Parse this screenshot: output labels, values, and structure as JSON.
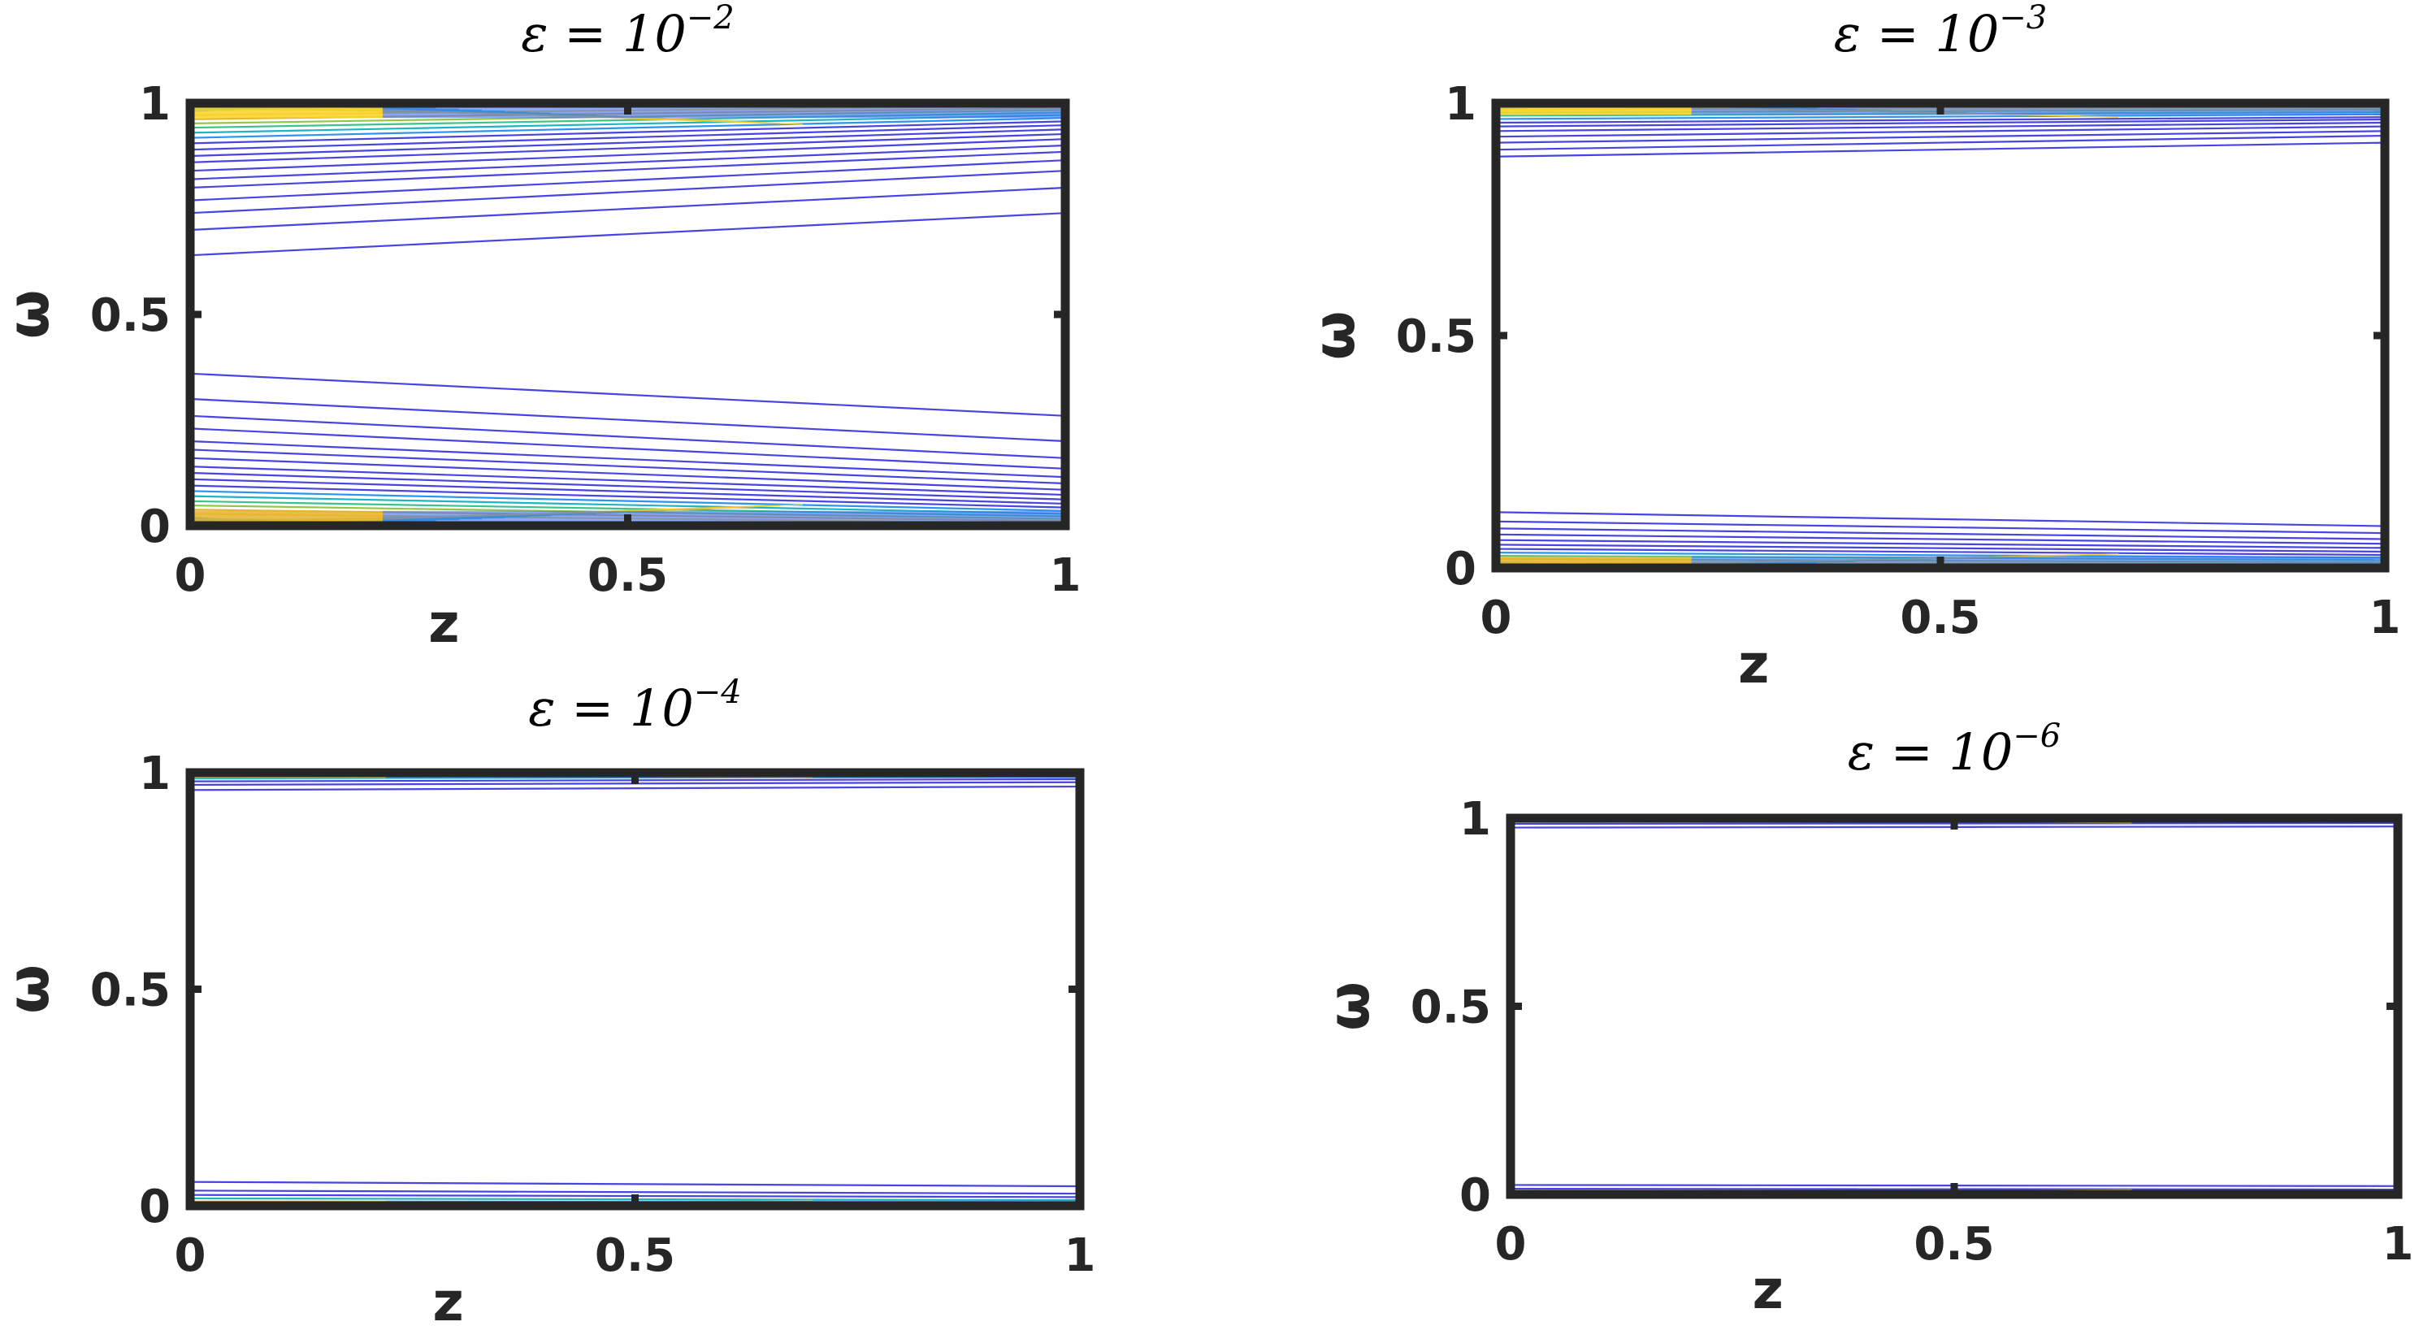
{
  "figure": {
    "panel_count": 4,
    "colormap": [
      "#3e26a8",
      "#4744e1",
      "#3b6dfb",
      "#2b93f0",
      "#1db4c4",
      "#3bc38b",
      "#93c644",
      "#e6b32f",
      "#f9d229"
    ]
  },
  "chart_data": [
    {
      "type": "contour",
      "title_eps": "ε = 10",
      "title_exp": "−2",
      "xlabel": "z",
      "ylabel": "ω",
      "xlim": [
        0,
        1
      ],
      "ylim": [
        0,
        1
      ],
      "xticks": [
        0,
        0.5,
        1
      ],
      "yticks": [
        0,
        0.5,
        1
      ],
      "xtick_labels": [
        "0",
        "0.5",
        "1"
      ],
      "ytick_labels": [
        "0",
        "0.5",
        "1"
      ],
      "top_contours": [
        {
          "w0": 0.64,
          "w1": 0.74
        },
        {
          "w0": 0.7,
          "w1": 0.8
        },
        {
          "w0": 0.74,
          "w1": 0.84
        },
        {
          "w0": 0.77,
          "w1": 0.865
        },
        {
          "w0": 0.8,
          "w1": 0.885
        },
        {
          "w0": 0.82,
          "w1": 0.9
        },
        {
          "w0": 0.84,
          "w1": 0.915
        },
        {
          "w0": 0.86,
          "w1": 0.927
        },
        {
          "w0": 0.875,
          "w1": 0.938
        },
        {
          "w0": 0.89,
          "w1": 0.948
        },
        {
          "w0": 0.905,
          "w1": 0.957
        },
        {
          "w0": 0.918,
          "w1": 0.965
        },
        {
          "w0": 0.93,
          "w1": 0.972
        },
        {
          "w0": 0.942,
          "w1": 0.978
        },
        {
          "w0": 0.952,
          "w1": 0.984
        },
        {
          "w0": 0.962,
          "w1": 0.989
        },
        {
          "w0": 0.972,
          "w1": 0.994
        }
      ],
      "bottom_contours": [
        {
          "w0": 0.36,
          "w1": 0.26
        },
        {
          "w0": 0.3,
          "w1": 0.2
        },
        {
          "w0": 0.26,
          "w1": 0.16
        },
        {
          "w0": 0.23,
          "w1": 0.135
        },
        {
          "w0": 0.2,
          "w1": 0.115
        },
        {
          "w0": 0.18,
          "w1": 0.1
        },
        {
          "w0": 0.16,
          "w1": 0.085
        },
        {
          "w0": 0.14,
          "w1": 0.073
        },
        {
          "w0": 0.125,
          "w1": 0.062
        },
        {
          "w0": 0.11,
          "w1": 0.052
        },
        {
          "w0": 0.095,
          "w1": 0.043
        },
        {
          "w0": 0.082,
          "w1": 0.035
        },
        {
          "w0": 0.07,
          "w1": 0.028
        },
        {
          "w0": 0.058,
          "w1": 0.022
        },
        {
          "w0": 0.048,
          "w1": 0.016
        },
        {
          "w0": 0.038,
          "w1": 0.011
        },
        {
          "w0": 0.028,
          "w1": 0.006
        }
      ]
    },
    {
      "type": "contour",
      "title_eps": "ε = 10",
      "title_exp": "−3",
      "xlabel": "z",
      "ylabel": "ω",
      "xlim": [
        0,
        1
      ],
      "ylim": [
        0,
        1
      ],
      "xticks": [
        0,
        0.5,
        1
      ],
      "yticks": [
        0,
        0.5,
        1
      ],
      "xtick_labels": [
        "0",
        "0.5",
        "1"
      ],
      "ytick_labels": [
        "0",
        "0.5",
        "1"
      ],
      "top_contours": [
        {
          "w0": 0.885,
          "w1": 0.915
        },
        {
          "w0": 0.9,
          "w1": 0.93
        },
        {
          "w0": 0.915,
          "w1": 0.94
        },
        {
          "w0": 0.928,
          "w1": 0.95
        },
        {
          "w0": 0.94,
          "w1": 0.958
        },
        {
          "w0": 0.95,
          "w1": 0.965
        },
        {
          "w0": 0.958,
          "w1": 0.97
        },
        {
          "w0": 0.966,
          "w1": 0.976
        },
        {
          "w0": 0.973,
          "w1": 0.981
        },
        {
          "w0": 0.98,
          "w1": 0.986
        },
        {
          "w0": 0.986,
          "w1": 0.99
        }
      ],
      "bottom_contours": [
        {
          "w0": 0.12,
          "w1": 0.09
        },
        {
          "w0": 0.1,
          "w1": 0.075
        },
        {
          "w0": 0.085,
          "w1": 0.062
        },
        {
          "w0": 0.072,
          "w1": 0.052
        },
        {
          "w0": 0.06,
          "w1": 0.043
        },
        {
          "w0": 0.05,
          "w1": 0.035
        },
        {
          "w0": 0.041,
          "w1": 0.028
        },
        {
          "w0": 0.033,
          "w1": 0.022
        },
        {
          "w0": 0.026,
          "w1": 0.017
        },
        {
          "w0": 0.019,
          "w1": 0.012
        },
        {
          "w0": 0.013,
          "w1": 0.008
        }
      ]
    },
    {
      "type": "contour",
      "title_eps": "ε = 10",
      "title_exp": "−4",
      "xlabel": "z",
      "ylabel": "ω",
      "xlim": [
        0,
        1
      ],
      "ylim": [
        0,
        1
      ],
      "xticks": [
        0,
        0.5,
        1
      ],
      "yticks": [
        0,
        0.5,
        1
      ],
      "xtick_labels": [
        "0",
        "0.5",
        "1"
      ],
      "ytick_labels": [
        "0",
        "0.5",
        "1"
      ],
      "top_contours": [
        {
          "w0": 0.96,
          "w1": 0.968
        },
        {
          "w0": 0.972,
          "w1": 0.978
        },
        {
          "w0": 0.98,
          "w1": 0.985
        },
        {
          "w0": 0.987,
          "w1": 0.99
        },
        {
          "w0": 0.992,
          "w1": 0.994
        }
      ],
      "bottom_contours": [
        {
          "w0": 0.055,
          "w1": 0.045
        },
        {
          "w0": 0.035,
          "w1": 0.028
        },
        {
          "w0": 0.025,
          "w1": 0.02
        },
        {
          "w0": 0.017,
          "w1": 0.013
        },
        {
          "w0": 0.01,
          "w1": 0.008
        }
      ]
    },
    {
      "type": "contour",
      "title_eps": "ε = 10",
      "title_exp": "−6",
      "xlabel": "z",
      "ylabel": "ω",
      "xlim": [
        0,
        1
      ],
      "ylim": [
        0,
        1
      ],
      "xticks": [
        0,
        0.5,
        1
      ],
      "yticks": [
        0,
        0.5,
        1
      ],
      "xtick_labels": [
        "0",
        "0.5",
        "1"
      ],
      "ytick_labels": [
        "0",
        "0.5",
        "1"
      ],
      "top_contours": [
        {
          "w0": 0.975,
          "w1": 0.978
        },
        {
          "w0": 0.985,
          "w1": 0.987
        },
        {
          "w0": 0.992,
          "w1": 0.993
        }
      ],
      "bottom_contours": [
        {
          "w0": 0.025,
          "w1": 0.022
        },
        {
          "w0": 0.015,
          "w1": 0.013
        },
        {
          "w0": 0.008,
          "w1": 0.007
        }
      ]
    }
  ]
}
